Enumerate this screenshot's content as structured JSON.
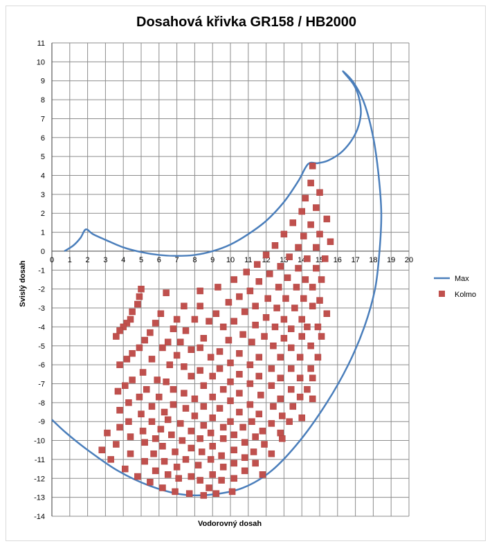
{
  "chart_data": {
    "type": "scatter",
    "title": "Dosahová křivka GR158 / HB2000",
    "xlabel": "Vodorovný dosah",
    "ylabel": "Svislý dosah",
    "xlim": [
      0,
      20
    ],
    "ylim": [
      -14,
      11
    ],
    "grid": true,
    "legend_position": "right",
    "x_ticks": [
      "0",
      "1",
      "2",
      "3",
      "4",
      "5",
      "6",
      "7",
      "8",
      "9",
      "10",
      "11",
      "12",
      "13",
      "14",
      "15",
      "16",
      "17",
      "18",
      "19",
      "20"
    ],
    "y_ticks": [
      "11",
      "10",
      "9",
      "8",
      "7",
      "6",
      "5",
      "4",
      "3",
      "2",
      "1",
      "0",
      "-1",
      "-2",
      "-3",
      "-4",
      "-5",
      "-6",
      "-7",
      "-8",
      "-9",
      "-10",
      "-11",
      "-12",
      "-13",
      "-14"
    ],
    "series": [
      {
        "name": "Max",
        "kind": "line",
        "color": "#4a7ebb",
        "points": [
          [
            0.7,
            0.0
          ],
          [
            1.2,
            0.3
          ],
          [
            1.6,
            0.7
          ],
          [
            1.9,
            1.15
          ],
          [
            2.3,
            0.9
          ],
          [
            3.0,
            0.6
          ],
          [
            4.0,
            0.2
          ],
          [
            5.0,
            -0.05
          ],
          [
            6.0,
            -0.2
          ],
          [
            7.0,
            -0.25
          ],
          [
            8.0,
            -0.2
          ],
          [
            9.0,
            0.0
          ],
          [
            10.0,
            0.35
          ],
          [
            11.0,
            0.9
          ],
          [
            12.0,
            1.6
          ],
          [
            13.0,
            2.6
          ],
          [
            13.8,
            3.7
          ],
          [
            14.35,
            4.6
          ],
          [
            14.9,
            4.65
          ],
          [
            15.5,
            4.8
          ],
          [
            16.3,
            5.3
          ],
          [
            17.0,
            6.2
          ],
          [
            17.3,
            7.2
          ],
          [
            17.2,
            8.1
          ],
          [
            16.9,
            8.8
          ],
          [
            16.3,
            9.5
          ],
          [
            16.9,
            8.9
          ],
          [
            17.5,
            7.8
          ],
          [
            18.0,
            6.0
          ],
          [
            18.3,
            4.0
          ],
          [
            18.45,
            2.0
          ],
          [
            18.35,
            0.0
          ],
          [
            18.1,
            -2.0
          ],
          [
            17.5,
            -4.0
          ],
          [
            16.6,
            -6.0
          ],
          [
            15.4,
            -8.0
          ],
          [
            13.9,
            -10.0
          ],
          [
            12.3,
            -11.6
          ],
          [
            10.7,
            -12.5
          ],
          [
            9.0,
            -12.85
          ],
          [
            7.3,
            -12.85
          ],
          [
            5.5,
            -12.4
          ],
          [
            3.7,
            -11.6
          ],
          [
            2.0,
            -10.5
          ],
          [
            0.8,
            -9.6
          ],
          [
            0.0,
            -8.9
          ]
        ]
      },
      {
        "name": "Kolmo",
        "kind": "marker",
        "color": "#c0504d",
        "points": [
          [
            14.6,
            4.5
          ],
          [
            14.5,
            3.6
          ],
          [
            15.0,
            3.1
          ],
          [
            14.2,
            2.8
          ],
          [
            14.8,
            2.3
          ],
          [
            14.0,
            2.1
          ],
          [
            15.4,
            1.7
          ],
          [
            13.5,
            1.5
          ],
          [
            14.5,
            1.4
          ],
          [
            15.0,
            0.9
          ],
          [
            13.0,
            0.9
          ],
          [
            14.1,
            0.8
          ],
          [
            15.6,
            0.5
          ],
          [
            12.5,
            0.3
          ],
          [
            13.8,
            0.2
          ],
          [
            14.8,
            0.2
          ],
          [
            12.0,
            -0.2
          ],
          [
            13.3,
            -0.3
          ],
          [
            14.3,
            -0.4
          ],
          [
            15.3,
            -0.4
          ],
          [
            11.5,
            -0.7
          ],
          [
            12.8,
            -0.8
          ],
          [
            13.8,
            -0.9
          ],
          [
            14.8,
            -0.9
          ],
          [
            10.9,
            -1.1
          ],
          [
            12.2,
            -1.2
          ],
          [
            13.2,
            -1.4
          ],
          [
            14.2,
            -1.5
          ],
          [
            15.1,
            -1.5
          ],
          [
            10.2,
            -1.5
          ],
          [
            11.6,
            -1.6
          ],
          [
            12.7,
            -1.9
          ],
          [
            13.7,
            -1.9
          ],
          [
            14.6,
            -1.9
          ],
          [
            9.3,
            -1.9
          ],
          [
            8.3,
            -2.1
          ],
          [
            11.1,
            -2.1
          ],
          [
            10.5,
            -2.4
          ],
          [
            12.1,
            -2.5
          ],
          [
            13.1,
            -2.5
          ],
          [
            14.1,
            -2.5
          ],
          [
            15.0,
            -2.6
          ],
          [
            9.9,
            -2.7
          ],
          [
            7.4,
            -2.9
          ],
          [
            6.4,
            -2.2
          ],
          [
            5.0,
            -2.0
          ],
          [
            4.9,
            -2.4
          ],
          [
            4.8,
            -2.8
          ],
          [
            4.5,
            -3.2
          ],
          [
            11.4,
            -2.9
          ],
          [
            12.6,
            -3.0
          ],
          [
            13.6,
            -3.0
          ],
          [
            14.6,
            -2.9
          ],
          [
            8.3,
            -2.9
          ],
          [
            10.8,
            -3.2
          ],
          [
            9.2,
            -3.3
          ],
          [
            12.0,
            -3.5
          ],
          [
            13.0,
            -3.6
          ],
          [
            14.0,
            -3.6
          ],
          [
            15.4,
            -3.3
          ],
          [
            6.1,
            -3.3
          ],
          [
            7.0,
            -3.6
          ],
          [
            8.0,
            -3.6
          ],
          [
            4.4,
            -3.6
          ],
          [
            10.2,
            -3.7
          ],
          [
            11.4,
            -3.9
          ],
          [
            12.5,
            -4.0
          ],
          [
            13.4,
            -4.1
          ],
          [
            14.3,
            -4.0
          ],
          [
            14.9,
            -4.0
          ],
          [
            4.2,
            -3.8
          ],
          [
            5.8,
            -3.8
          ],
          [
            8.8,
            -3.7
          ],
          [
            9.6,
            -4.0
          ],
          [
            4.0,
            -4.0
          ],
          [
            7.5,
            -4.2
          ],
          [
            6.8,
            -4.1
          ],
          [
            10.7,
            -4.4
          ],
          [
            11.9,
            -4.5
          ],
          [
            13.0,
            -4.6
          ],
          [
            14.0,
            -4.5
          ],
          [
            15.1,
            -4.5
          ],
          [
            3.8,
            -4.2
          ],
          [
            5.5,
            -4.3
          ],
          [
            8.5,
            -4.6
          ],
          [
            3.6,
            -4.5
          ],
          [
            9.9,
            -4.7
          ],
          [
            11.2,
            -4.8
          ],
          [
            12.4,
            -5.0
          ],
          [
            13.4,
            -5.1
          ],
          [
            14.5,
            -5.0
          ],
          [
            5.2,
            -4.7
          ],
          [
            7.2,
            -4.8
          ],
          [
            6.5,
            -4.8
          ],
          [
            8.3,
            -5.1
          ],
          [
            9.4,
            -5.3
          ],
          [
            10.5,
            -5.4
          ],
          [
            11.6,
            -5.6
          ],
          [
            12.8,
            -5.6
          ],
          [
            13.9,
            -5.6
          ],
          [
            14.9,
            -5.6
          ],
          [
            4.9,
            -5.1
          ],
          [
            5.6,
            -5.7
          ],
          [
            7.8,
            -5.2
          ],
          [
            6.2,
            -5.1
          ],
          [
            7.0,
            -5.5
          ],
          [
            4.5,
            -5.4
          ],
          [
            8.9,
            -5.6
          ],
          [
            10.0,
            -5.9
          ],
          [
            11.1,
            -6.0
          ],
          [
            12.3,
            -6.2
          ],
          [
            13.4,
            -6.2
          ],
          [
            14.5,
            -6.2
          ],
          [
            4.2,
            -5.7
          ],
          [
            6.6,
            -6.0
          ],
          [
            3.8,
            -6.0
          ],
          [
            9.4,
            -6.2
          ],
          [
            7.4,
            -6.1
          ],
          [
            8.3,
            -6.3
          ],
          [
            5.1,
            -6.4
          ],
          [
            10.5,
            -6.5
          ],
          [
            11.6,
            -6.6
          ],
          [
            12.8,
            -6.7
          ],
          [
            13.9,
            -6.7
          ],
          [
            14.6,
            -6.7
          ],
          [
            5.9,
            -6.8
          ],
          [
            4.5,
            -6.8
          ],
          [
            9.0,
            -6.6
          ],
          [
            7.8,
            -6.6
          ],
          [
            6.4,
            -6.9
          ],
          [
            4.1,
            -7.1
          ],
          [
            10.0,
            -6.9
          ],
          [
            11.1,
            -7.0
          ],
          [
            12.3,
            -7.1
          ],
          [
            13.4,
            -7.3
          ],
          [
            6.8,
            -7.3
          ],
          [
            8.5,
            -7.1
          ],
          [
            9.6,
            -7.3
          ],
          [
            3.7,
            -7.4
          ],
          [
            5.3,
            -7.3
          ],
          [
            14.3,
            -7.3
          ],
          [
            7.4,
            -7.5
          ],
          [
            10.5,
            -7.5
          ],
          [
            11.7,
            -7.6
          ],
          [
            12.8,
            -7.8
          ],
          [
            13.9,
            -7.7
          ],
          [
            14.6,
            -7.8
          ],
          [
            4.9,
            -7.7
          ],
          [
            6.0,
            -7.7
          ],
          [
            8.0,
            -7.8
          ],
          [
            9.0,
            -7.7
          ],
          [
            4.3,
            -8.0
          ],
          [
            10.0,
            -7.9
          ],
          [
            11.1,
            -8.1
          ],
          [
            12.4,
            -8.2
          ],
          [
            13.5,
            -8.2
          ],
          [
            6.8,
            -8.1
          ],
          [
            8.5,
            -8.2
          ],
          [
            9.4,
            -8.3
          ],
          [
            5.6,
            -8.2
          ],
          [
            3.8,
            -8.4
          ],
          [
            7.5,
            -8.3
          ],
          [
            10.5,
            -8.5
          ],
          [
            11.6,
            -8.6
          ],
          [
            12.9,
            -8.7
          ],
          [
            14.0,
            -8.8
          ],
          [
            6.3,
            -8.5
          ],
          [
            5.0,
            -8.6
          ],
          [
            8.0,
            -8.7
          ],
          [
            9.0,
            -8.8
          ],
          [
            4.3,
            -9.0
          ],
          [
            10.0,
            -9.0
          ],
          [
            11.2,
            -9.0
          ],
          [
            12.3,
            -9.1
          ],
          [
            13.3,
            -9.0
          ],
          [
            7.2,
            -9.1
          ],
          [
            8.5,
            -9.2
          ],
          [
            5.6,
            -9.0
          ],
          [
            6.5,
            -8.9
          ],
          [
            9.6,
            -9.3
          ],
          [
            3.8,
            -9.3
          ],
          [
            10.7,
            -9.3
          ],
          [
            11.8,
            -9.5
          ],
          [
            12.8,
            -9.6
          ],
          [
            5.1,
            -9.5
          ],
          [
            7.8,
            -9.5
          ],
          [
            8.9,
            -9.6
          ],
          [
            6.1,
            -9.4
          ],
          [
            3.1,
            -9.6
          ],
          [
            10.2,
            -9.7
          ],
          [
            11.4,
            -9.8
          ],
          [
            4.4,
            -9.8
          ],
          [
            6.7,
            -9.7
          ],
          [
            9.6,
            -9.9
          ],
          [
            8.3,
            -9.9
          ],
          [
            7.3,
            -10.0
          ],
          [
            5.8,
            -9.9
          ],
          [
            12.9,
            -9.9
          ],
          [
            10.8,
            -10.1
          ],
          [
            11.9,
            -10.2
          ],
          [
            3.6,
            -10.2
          ],
          [
            5.2,
            -10.1
          ],
          [
            9.0,
            -10.3
          ],
          [
            6.2,
            -10.3
          ],
          [
            7.8,
            -10.4
          ],
          [
            10.2,
            -10.5
          ],
          [
            11.3,
            -10.6
          ],
          [
            2.8,
            -10.5
          ],
          [
            8.4,
            -10.6
          ],
          [
            6.9,
            -10.6
          ],
          [
            4.4,
            -10.7
          ],
          [
            5.7,
            -10.7
          ],
          [
            12.3,
            -10.7
          ],
          [
            9.5,
            -10.8
          ],
          [
            10.8,
            -10.9
          ],
          [
            3.3,
            -11.0
          ],
          [
            7.5,
            -11.0
          ],
          [
            8.9,
            -11.0
          ],
          [
            6.3,
            -11.1
          ],
          [
            5.2,
            -11.1
          ],
          [
            10.2,
            -11.2
          ],
          [
            11.4,
            -11.2
          ],
          [
            8.2,
            -11.3
          ],
          [
            7.0,
            -11.4
          ],
          [
            4.1,
            -11.5
          ],
          [
            9.6,
            -11.4
          ],
          [
            5.8,
            -11.6
          ],
          [
            10.8,
            -11.6
          ],
          [
            6.5,
            -11.8
          ],
          [
            11.8,
            -11.8
          ],
          [
            9.0,
            -11.8
          ],
          [
            4.8,
            -11.9
          ],
          [
            7.8,
            -11.9
          ],
          [
            7.1,
            -12.0
          ],
          [
            10.2,
            -12.0
          ],
          [
            8.3,
            -12.1
          ],
          [
            9.5,
            -12.1
          ],
          [
            5.5,
            -12.2
          ],
          [
            6.2,
            -12.5
          ],
          [
            8.8,
            -12.5
          ],
          [
            6.9,
            -12.7
          ],
          [
            7.7,
            -12.8
          ],
          [
            8.5,
            -12.9
          ],
          [
            9.2,
            -12.8
          ],
          [
            10.1,
            -12.7
          ]
        ]
      }
    ]
  }
}
